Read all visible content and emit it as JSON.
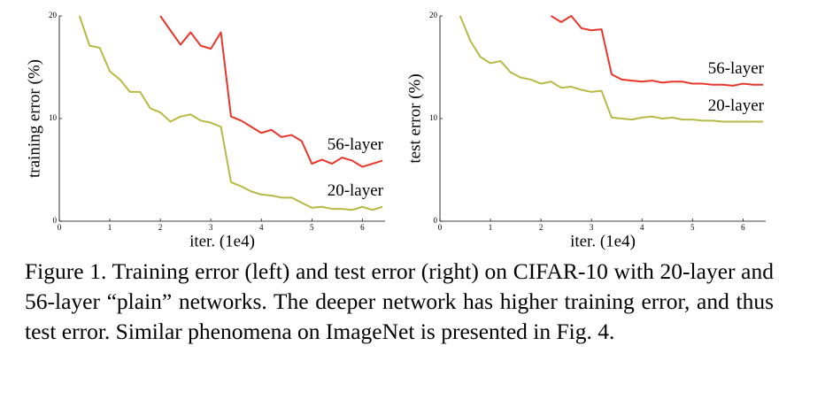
{
  "chart_data": [
    {
      "type": "line",
      "ylabel": "training error (%)",
      "xlabel": "iter. (1e4)",
      "xlim": [
        0,
        6.45
      ],
      "ylim": [
        0,
        20
      ],
      "xticks": [
        0,
        1,
        2,
        3,
        4,
        5,
        6
      ],
      "yticks": [
        0,
        10,
        20
      ],
      "x": [
        0.4,
        0.6,
        0.8,
        1.0,
        1.2,
        1.4,
        1.6,
        1.8,
        2.0,
        2.2,
        2.4,
        2.6,
        2.8,
        3.0,
        3.2,
        3.4,
        3.6,
        3.8,
        4.0,
        4.2,
        4.4,
        4.6,
        4.8,
        5.0,
        5.2,
        5.4,
        5.6,
        5.8,
        6.0,
        6.2,
        6.4
      ],
      "series": [
        {
          "name": "56-layer",
          "color": "#e8372a",
          "values": [
            null,
            null,
            null,
            null,
            null,
            null,
            null,
            null,
            20,
            18.6,
            17.2,
            18.4,
            17.1,
            16.8,
            18.4,
            10.2,
            9.8,
            9.2,
            8.6,
            8.9,
            8.2,
            8.4,
            7.8,
            5.6,
            6.0,
            5.6,
            6.2,
            5.9,
            5.3,
            5.6,
            5.9
          ]
        },
        {
          "name": "20-layer",
          "color": "#b7ba45",
          "values": [
            20,
            17.1,
            16.9,
            14.6,
            13.8,
            12.6,
            12.6,
            11.0,
            10.6,
            9.7,
            10.2,
            10.4,
            9.8,
            9.6,
            9.2,
            3.8,
            3.4,
            2.9,
            2.6,
            2.5,
            2.3,
            2.3,
            1.8,
            1.3,
            1.4,
            1.2,
            1.2,
            1.1,
            1.4,
            1.1,
            1.4
          ]
        }
      ]
    },
    {
      "type": "line",
      "ylabel": "test error (%)",
      "xlabel": "iter. (1e4)",
      "xlim": [
        0,
        6.45
      ],
      "ylim": [
        0,
        20
      ],
      "xticks": [
        0,
        1,
        2,
        3,
        4,
        5,
        6
      ],
      "yticks": [
        0,
        10,
        20
      ],
      "x": [
        0.4,
        0.6,
        0.8,
        1.0,
        1.2,
        1.4,
        1.6,
        1.8,
        2.0,
        2.2,
        2.4,
        2.6,
        2.8,
        3.0,
        3.2,
        3.4,
        3.6,
        3.8,
        4.0,
        4.2,
        4.4,
        4.6,
        4.8,
        5.0,
        5.2,
        5.4,
        5.6,
        5.8,
        6.0,
        6.2,
        6.4
      ],
      "series": [
        {
          "name": "56-layer",
          "color": "#e8372a",
          "values": [
            null,
            null,
            null,
            null,
            null,
            null,
            null,
            null,
            null,
            20,
            19.4,
            20,
            18.8,
            18.6,
            18.7,
            14.3,
            13.8,
            13.7,
            13.6,
            13.7,
            13.5,
            13.6,
            13.6,
            13.4,
            13.4,
            13.3,
            13.3,
            13.2,
            13.4,
            13.3,
            13.3
          ]
        },
        {
          "name": "20-layer",
          "color": "#b7ba45",
          "values": [
            20,
            17.6,
            16.0,
            15.4,
            15.6,
            14.5,
            14.0,
            13.8,
            13.4,
            13.6,
            13.0,
            13.1,
            12.8,
            12.6,
            12.7,
            10.1,
            10.0,
            9.9,
            10.1,
            10.2,
            10.0,
            10.1,
            9.9,
            9.9,
            9.8,
            9.8,
            9.7,
            9.7,
            9.7,
            9.7,
            9.7
          ]
        }
      ]
    }
  ],
  "caption": "Figure 1. Training error (left) and test error (right) on CIFAR-10 with 20-layer and 56-layer “plain” networks. The deeper network has higher training error, and thus test error. Similar phenomena on ImageNet is presented in Fig. 4."
}
